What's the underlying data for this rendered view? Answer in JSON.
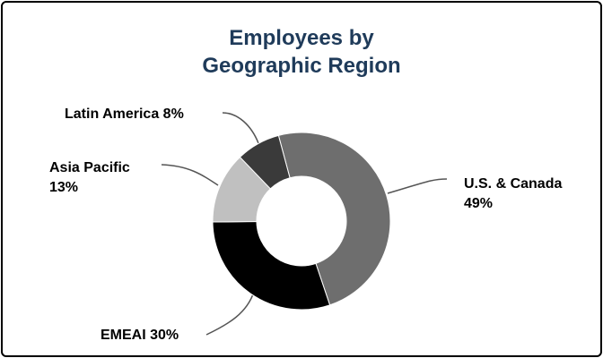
{
  "chart_data": {
    "type": "donut",
    "title": "Employees by Geographic Region",
    "categories": [
      "U.S. & Canada",
      "EMEAI",
      "Asia Pacific",
      "Latin America"
    ],
    "values": [
      49,
      30,
      13,
      8
    ],
    "value_labels": [
      "49%",
      "30%",
      "13%",
      "8%"
    ],
    "colors": [
      "#6e6e6e",
      "#000000",
      "#c0c0c0",
      "#3a3a3a"
    ]
  }
}
